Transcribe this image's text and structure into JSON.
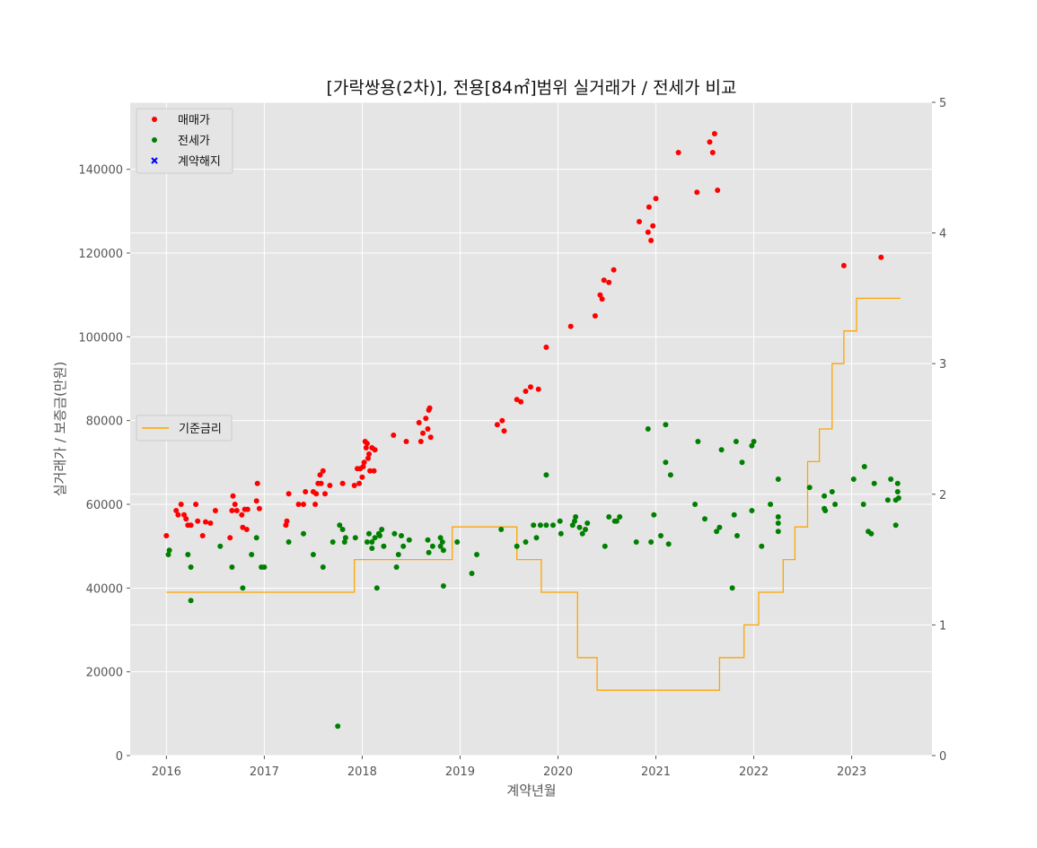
{
  "chart_data": {
    "type": "scatter",
    "title": "[가락쌍용(2차)], 전용[84㎡]범위 실거래가 / 전세가 비교",
    "xlabel": "계약년월",
    "ylabel": "실거래가 / 보증금(만원)",
    "x_ticks": [
      "2016",
      "2017",
      "2018",
      "2019",
      "2020",
      "2021",
      "2022",
      "2023"
    ],
    "y_ticks": [
      "0",
      "20000",
      "40000",
      "60000",
      "80000",
      "100000",
      "120000",
      "140000"
    ],
    "y2_ticks": [
      "0",
      "1",
      "2",
      "3",
      "4",
      "5"
    ],
    "xlim": [
      2015.63,
      2023.82
    ],
    "ylim": [
      0,
      156000
    ],
    "y2lim": [
      0,
      5
    ],
    "grid": true,
    "legend_main_position": "upper-left",
    "legend_rate_position": "center-left",
    "legend_main": [
      {
        "label": "매매가",
        "marker": "dot",
        "color": "#ff0000"
      },
      {
        "label": "전세가",
        "marker": "dot",
        "color": "#008000"
      },
      {
        "label": "계약해지",
        "marker": "x",
        "color": "#0000ff"
      }
    ],
    "legend_rate": [
      {
        "label": "기준금리",
        "marker": "line",
        "color": "#ffa500"
      }
    ],
    "series": [
      {
        "name": "매매가",
        "color": "#ff0000",
        "points": [
          [
            2016.0,
            52500
          ],
          [
            2016.1,
            58500
          ],
          [
            2016.12,
            57500
          ],
          [
            2016.15,
            60000
          ],
          [
            2016.18,
            57500
          ],
          [
            2016.2,
            56500
          ],
          [
            2016.22,
            55000
          ],
          [
            2016.25,
            55000
          ],
          [
            2016.3,
            60000
          ],
          [
            2016.32,
            56000
          ],
          [
            2016.37,
            52500
          ],
          [
            2016.4,
            55800
          ],
          [
            2016.45,
            55500
          ],
          [
            2016.5,
            58500
          ],
          [
            2016.65,
            52000
          ],
          [
            2016.67,
            58500
          ],
          [
            2016.68,
            62000
          ],
          [
            2016.7,
            60000
          ],
          [
            2016.72,
            58500
          ],
          [
            2016.77,
            57500
          ],
          [
            2016.78,
            54500
          ],
          [
            2016.8,
            58800
          ],
          [
            2016.82,
            54000
          ],
          [
            2016.83,
            58800
          ],
          [
            2016.92,
            60800
          ],
          [
            2016.93,
            65000
          ],
          [
            2016.95,
            59000
          ],
          [
            2017.22,
            55000
          ],
          [
            2017.23,
            56000
          ],
          [
            2017.25,
            62500
          ],
          [
            2017.35,
            60000
          ],
          [
            2017.4,
            60000
          ],
          [
            2017.42,
            63000
          ],
          [
            2017.5,
            63000
          ],
          [
            2017.52,
            60000
          ],
          [
            2017.53,
            62500
          ],
          [
            2017.55,
            65000
          ],
          [
            2017.57,
            67000
          ],
          [
            2017.58,
            65000
          ],
          [
            2017.6,
            68000
          ],
          [
            2017.62,
            62500
          ],
          [
            2017.67,
            64500
          ],
          [
            2017.8,
            65000
          ],
          [
            2017.92,
            64500
          ],
          [
            2017.95,
            68500
          ],
          [
            2017.97,
            65000
          ],
          [
            2017.98,
            68500
          ],
          [
            2018.0,
            66500
          ],
          [
            2018.01,
            69000
          ],
          [
            2018.02,
            70000
          ],
          [
            2018.03,
            75000
          ],
          [
            2018.04,
            73500
          ],
          [
            2018.05,
            74500
          ],
          [
            2018.06,
            71000
          ],
          [
            2018.07,
            72000
          ],
          [
            2018.08,
            68000
          ],
          [
            2018.1,
            73500
          ],
          [
            2018.12,
            68000
          ],
          [
            2018.13,
            73000
          ],
          [
            2018.32,
            76500
          ],
          [
            2018.45,
            75000
          ],
          [
            2018.58,
            79500
          ],
          [
            2018.6,
            75000
          ],
          [
            2018.62,
            77000
          ],
          [
            2018.65,
            80500
          ],
          [
            2018.67,
            78000
          ],
          [
            2018.68,
            82500
          ],
          [
            2018.69,
            83000
          ],
          [
            2018.7,
            76000
          ],
          [
            2019.38,
            79000
          ],
          [
            2019.43,
            80000
          ],
          [
            2019.45,
            77500
          ],
          [
            2019.58,
            85000
          ],
          [
            2019.62,
            84500
          ],
          [
            2019.67,
            87000
          ],
          [
            2019.72,
            88000
          ],
          [
            2019.8,
            87500
          ],
          [
            2019.88,
            97500
          ],
          [
            2020.13,
            102500
          ],
          [
            2020.38,
            105000
          ],
          [
            2020.43,
            110000
          ],
          [
            2020.45,
            109000
          ],
          [
            2020.47,
            113500
          ],
          [
            2020.52,
            113000
          ],
          [
            2020.57,
            116000
          ],
          [
            2020.83,
            127500
          ],
          [
            2020.92,
            125000
          ],
          [
            2020.93,
            131000
          ],
          [
            2020.95,
            123000
          ],
          [
            2020.97,
            126500
          ],
          [
            2021.0,
            133000
          ],
          [
            2021.23,
            144000
          ],
          [
            2021.42,
            134500
          ],
          [
            2021.55,
            146500
          ],
          [
            2021.58,
            144000
          ],
          [
            2021.6,
            148500
          ],
          [
            2021.63,
            135000
          ],
          [
            2022.92,
            117000
          ],
          [
            2023.3,
            119000
          ]
        ]
      },
      {
        "name": "전세가",
        "color": "#008000",
        "points": [
          [
            2016.02,
            48000
          ],
          [
            2016.03,
            49000
          ],
          [
            2016.22,
            48000
          ],
          [
            2016.25,
            45000
          ],
          [
            2016.25,
            37000
          ],
          [
            2016.55,
            50000
          ],
          [
            2016.67,
            45000
          ],
          [
            2016.78,
            40000
          ],
          [
            2016.87,
            48000
          ],
          [
            2016.92,
            52000
          ],
          [
            2016.97,
            45000
          ],
          [
            2017.0,
            45000
          ],
          [
            2017.25,
            51000
          ],
          [
            2017.4,
            53000
          ],
          [
            2017.5,
            48000
          ],
          [
            2017.6,
            45000
          ],
          [
            2017.7,
            51000
          ],
          [
            2017.75,
            7000
          ],
          [
            2017.77,
            55000
          ],
          [
            2017.8,
            54000
          ],
          [
            2017.82,
            51000
          ],
          [
            2017.83,
            52000
          ],
          [
            2017.93,
            52000
          ],
          [
            2018.05,
            51000
          ],
          [
            2018.07,
            53000
          ],
          [
            2018.1,
            51000
          ],
          [
            2018.1,
            49500
          ],
          [
            2018.13,
            52000
          ],
          [
            2018.15,
            40000
          ],
          [
            2018.17,
            53000
          ],
          [
            2018.18,
            52500
          ],
          [
            2018.2,
            54000
          ],
          [
            2018.22,
            50000
          ],
          [
            2018.33,
            53000
          ],
          [
            2018.35,
            45000
          ],
          [
            2018.37,
            48000
          ],
          [
            2018.4,
            52500
          ],
          [
            2018.42,
            50000
          ],
          [
            2018.48,
            51500
          ],
          [
            2018.67,
            51500
          ],
          [
            2018.68,
            48500
          ],
          [
            2018.72,
            50000
          ],
          [
            2018.8,
            52000
          ],
          [
            2018.8,
            50000
          ],
          [
            2018.82,
            51000
          ],
          [
            2018.83,
            49000
          ],
          [
            2018.83,
            40500
          ],
          [
            2018.97,
            51000
          ],
          [
            2019.12,
            43500
          ],
          [
            2019.17,
            48000
          ],
          [
            2019.42,
            54000
          ],
          [
            2019.58,
            50000
          ],
          [
            2019.67,
            51000
          ],
          [
            2019.75,
            55000
          ],
          [
            2019.78,
            52000
          ],
          [
            2019.82,
            55000
          ],
          [
            2019.88,
            67000
          ],
          [
            2019.88,
            55000
          ],
          [
            2019.95,
            55000
          ],
          [
            2020.02,
            56000
          ],
          [
            2020.03,
            53000
          ],
          [
            2020.15,
            55000
          ],
          [
            2020.17,
            56000
          ],
          [
            2020.18,
            57000
          ],
          [
            2020.22,
            54500
          ],
          [
            2020.25,
            53000
          ],
          [
            2020.28,
            54000
          ],
          [
            2020.3,
            55500
          ],
          [
            2020.48,
            50000
          ],
          [
            2020.52,
            57000
          ],
          [
            2020.58,
            56000
          ],
          [
            2020.6,
            56000
          ],
          [
            2020.63,
            57000
          ],
          [
            2020.8,
            51000
          ],
          [
            2020.92,
            78000
          ],
          [
            2020.95,
            51000
          ],
          [
            2020.98,
            57500
          ],
          [
            2021.05,
            52500
          ],
          [
            2021.1,
            70000
          ],
          [
            2021.1,
            79000
          ],
          [
            2021.13,
            50500
          ],
          [
            2021.15,
            67000
          ],
          [
            2021.4,
            60000
          ],
          [
            2021.43,
            75000
          ],
          [
            2021.5,
            56500
          ],
          [
            2021.62,
            53500
          ],
          [
            2021.65,
            54500
          ],
          [
            2021.67,
            73000
          ],
          [
            2021.78,
            40000
          ],
          [
            2021.8,
            57500
          ],
          [
            2021.82,
            75000
          ],
          [
            2021.83,
            52500
          ],
          [
            2021.88,
            70000
          ],
          [
            2021.98,
            74000
          ],
          [
            2021.98,
            58500
          ],
          [
            2022.0,
            75000
          ],
          [
            2022.08,
            50000
          ],
          [
            2022.17,
            60000
          ],
          [
            2022.25,
            66000
          ],
          [
            2022.25,
            57000
          ],
          [
            2022.25,
            55500
          ],
          [
            2022.25,
            53500
          ],
          [
            2022.57,
            64000
          ],
          [
            2022.72,
            62000
          ],
          [
            2022.72,
            59000
          ],
          [
            2022.73,
            58500
          ],
          [
            2022.8,
            63000
          ],
          [
            2022.83,
            60000
          ],
          [
            2023.02,
            66000
          ],
          [
            2023.12,
            60000
          ],
          [
            2023.13,
            69000
          ],
          [
            2023.17,
            53500
          ],
          [
            2023.2,
            53000
          ],
          [
            2023.23,
            65000
          ],
          [
            2023.37,
            61000
          ],
          [
            2023.4,
            66000
          ],
          [
            2023.45,
            61000
          ],
          [
            2023.45,
            55000
          ],
          [
            2023.47,
            63000
          ],
          [
            2023.47,
            65000
          ],
          [
            2023.48,
            61500
          ]
        ]
      },
      {
        "name": "계약해지",
        "color": "#0000ff",
        "points": []
      }
    ],
    "rate_series": {
      "name": "기준금리",
      "color": "#ffa500",
      "axis": "right",
      "step_points": [
        [
          2016.0,
          1.25
        ],
        [
          2017.92,
          1.5
        ],
        [
          2018.92,
          1.75
        ],
        [
          2019.58,
          1.5
        ],
        [
          2019.83,
          1.25
        ],
        [
          2020.2,
          0.75
        ],
        [
          2020.4,
          0.5
        ],
        [
          2021.65,
          0.75
        ],
        [
          2021.9,
          1.0
        ],
        [
          2022.05,
          1.25
        ],
        [
          2022.3,
          1.5
        ],
        [
          2022.42,
          1.75
        ],
        [
          2022.55,
          2.25
        ],
        [
          2022.67,
          2.5
        ],
        [
          2022.8,
          3.0
        ],
        [
          2022.92,
          3.25
        ],
        [
          2023.05,
          3.5
        ],
        [
          2023.5,
          3.5
        ]
      ]
    }
  }
}
